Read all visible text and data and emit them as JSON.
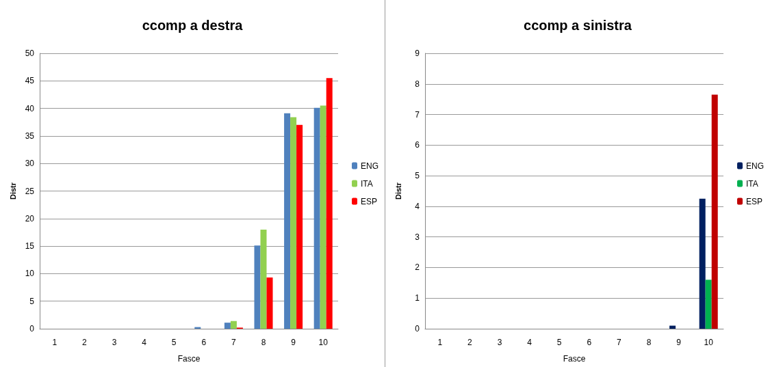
{
  "chart_data": [
    {
      "type": "bar",
      "title": "ccomp a destra",
      "xlabel": "Fasce",
      "ylabel": "Distr",
      "categories": [
        "1",
        "2",
        "3",
        "4",
        "5",
        "6",
        "7",
        "8",
        "9",
        "10"
      ],
      "series": [
        {
          "name": "ENG",
          "color": "#4f81bd",
          "values": [
            0,
            0,
            0,
            0,
            0,
            0.3,
            1.1,
            15.1,
            39.1,
            40.1
          ]
        },
        {
          "name": "ITA",
          "color": "#92d050",
          "values": [
            0,
            0,
            0,
            0,
            0,
            0,
            1.4,
            18,
            38.4,
            40.5
          ]
        },
        {
          "name": "ESP",
          "color": "#ff0000",
          "values": [
            0,
            0,
            0,
            0,
            0,
            0,
            0.2,
            9.3,
            37,
            45.5
          ]
        }
      ],
      "ylim": [
        0,
        50
      ],
      "yticks": [
        0,
        5,
        10,
        15,
        20,
        25,
        30,
        35,
        40,
        45,
        50
      ],
      "grid": "y",
      "legend": "right"
    },
    {
      "type": "bar",
      "title": "ccomp a sinistra",
      "xlabel": "Fasce",
      "ylabel": "Distr",
      "categories": [
        "1",
        "2",
        "3",
        "4",
        "5",
        "6",
        "7",
        "8",
        "9",
        "10"
      ],
      "series": [
        {
          "name": "ENG",
          "color": "#002060",
          "values": [
            0,
            0,
            0,
            0,
            0,
            0,
            0,
            0,
            0.1,
            4.25
          ]
        },
        {
          "name": "ITA",
          "color": "#00b050",
          "values": [
            0,
            0,
            0,
            0,
            0,
            0,
            0,
            0,
            0,
            1.6
          ]
        },
        {
          "name": "ESP",
          "color": "#c00000",
          "values": [
            0,
            0,
            0,
            0,
            0,
            0,
            0,
            0,
            0,
            7.65
          ]
        }
      ],
      "ylim": [
        0,
        9
      ],
      "yticks": [
        0,
        1,
        2,
        3,
        4,
        5,
        6,
        7,
        8,
        9
      ],
      "grid": "y",
      "legend": "right"
    }
  ]
}
